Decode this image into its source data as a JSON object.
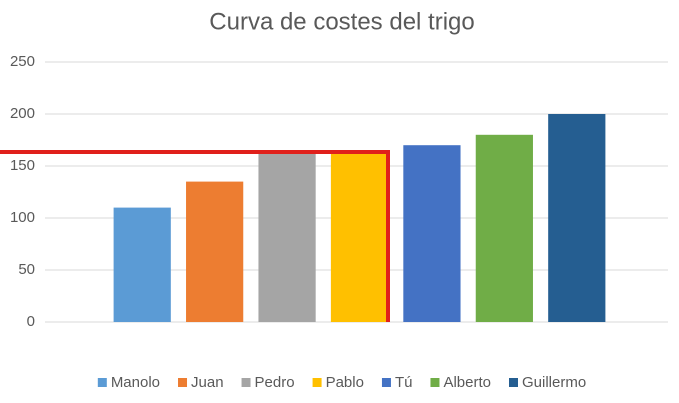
{
  "chart_data": {
    "type": "bar",
    "title": "Curva de costes del trigo",
    "categories": [
      "Manolo",
      "Juan",
      "Pedro",
      "Pablo",
      "Tú",
      "Alberto",
      "Guillermo"
    ],
    "values": [
      110,
      135,
      163,
      163,
      170,
      180,
      200
    ],
    "colors": [
      "#5b9bd5",
      "#ed7d31",
      "#a5a5a5",
      "#ffc000",
      "#4472c4",
      "#70ad47",
      "#255e91"
    ],
    "ylim": [
      0,
      250
    ],
    "yticks": [
      0,
      50,
      100,
      150,
      200,
      250
    ],
    "grid": true,
    "legend": "bottom"
  }
}
